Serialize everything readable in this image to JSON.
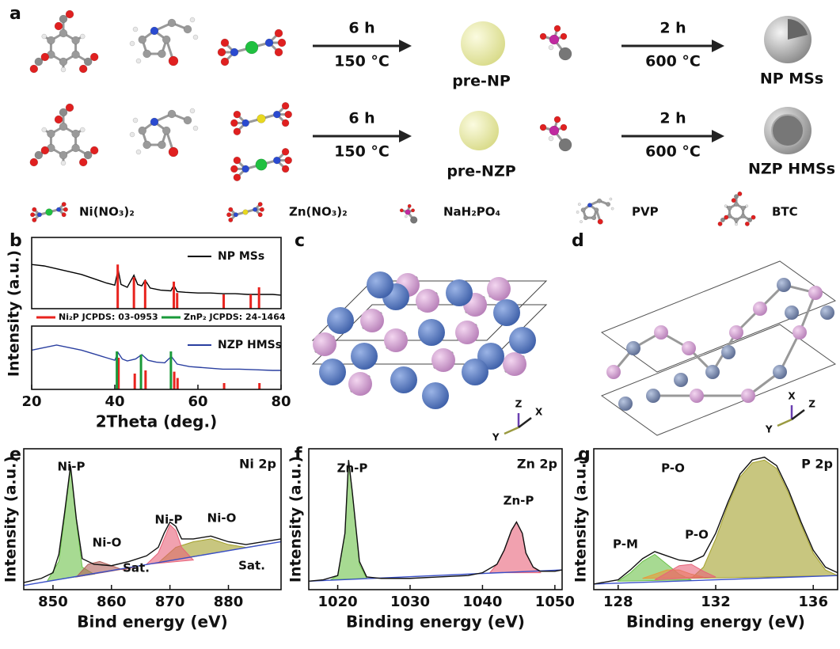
{
  "scheme": {
    "panel": "a",
    "rows": [
      {
        "step1": {
          "time": "6 h",
          "temp": "150 °C"
        },
        "intermediate": "pre-NP",
        "step2": {
          "time": "2 h",
          "temp": "600 °C"
        },
        "product": "NP MSs"
      },
      {
        "step1": {
          "time": "6 h",
          "temp": "150 °C"
        },
        "intermediate": "pre-NZP",
        "step2": {
          "time": "2 h",
          "temp": "600 °C"
        },
        "product": "NZP HMSs"
      }
    ],
    "legend": [
      "Ni(NO₃)₂",
      "Zn(NO₃)₂",
      "NaH₂PO₄",
      "PVP",
      "BTC"
    ]
  },
  "structures": [
    {
      "panel": "c",
      "axes": [
        "Z",
        "Y",
        "X"
      ]
    },
    {
      "panel": "d",
      "axes": [
        "X",
        "Y",
        "Z"
      ]
    }
  ],
  "chart_data": [
    {
      "type": "line",
      "panel": "b",
      "xlim": [
        20,
        80
      ],
      "ylim": [
        0,
        100
      ],
      "series": [
        {
          "name": "NP  MSs",
          "color": "#000000",
          "kind": "line",
          "x": [
            20,
            23,
            26,
            29,
            32,
            35,
            38,
            40,
            40.8,
            41.5,
            43,
            44.6,
            45.5,
            46.5,
            47.3,
            48.5,
            51,
            53.5,
            54.2,
            55,
            57,
            60,
            63,
            66,
            69,
            72,
            75,
            78,
            80
          ],
          "values": [
            62,
            60,
            56,
            52,
            48,
            42,
            36,
            33,
            55,
            34,
            30,
            47,
            34,
            32,
            40,
            29,
            26,
            25,
            33,
            24,
            23,
            22,
            22,
            21,
            21,
            20,
            20,
            20,
            19
          ]
        },
        {
          "color": "#e8231e",
          "kind": "stick",
          "x": [
            40.7,
            44.6,
            47.3,
            54.2,
            55.0,
            66.2,
            72.7,
            74.7
          ],
          "values": [
            62,
            44,
            40,
            38,
            22,
            20,
            20,
            30
          ]
        }
      ]
    },
    {
      "type": "line",
      "xlim": [
        20,
        80
      ],
      "xticks": [
        20,
        40,
        60,
        80
      ],
      "ylim": [
        0,
        100
      ],
      "xlabel": "2Theta (deg.)",
      "ylabel": "Intensity (a.u.)",
      "series": [
        {
          "name": "NZP  HMSs",
          "color": "#2a3fa0",
          "kind": "line",
          "x": [
            20,
            23,
            26,
            29,
            32,
            35,
            38,
            40,
            40.8,
            41.8,
            43,
            45,
            46.5,
            48,
            50,
            52,
            53.6,
            55,
            58,
            62,
            66,
            70,
            74,
            78,
            80
          ],
          "values": [
            62,
            66,
            70,
            66,
            62,
            56,
            50,
            46,
            58,
            48,
            45,
            48,
            55,
            46,
            43,
            42,
            52,
            40,
            36,
            34,
            32,
            32,
            31,
            30,
            30
          ]
        },
        {
          "name": "Ni₂P  JCPDS: 03-0953",
          "color": "#e8231e",
          "kind": "stick",
          "x": [
            40.9,
            44.8,
            47.4,
            54.3,
            55.1,
            66.3,
            74.8
          ],
          "values": [
            50,
            25,
            30,
            28,
            18,
            10,
            10
          ]
        },
        {
          "name": "ZnP₂  JCPDS: 24-1464",
          "color": "#1a9a3a",
          "kind": "stick",
          "x": [
            40.5,
            46.3,
            53.5
          ],
          "values": [
            60,
            55,
            60
          ]
        }
      ]
    },
    {
      "type": "line",
      "panel": "e",
      "title": "Ni 2p",
      "xlim": [
        845,
        889
      ],
      "xticks": [
        850,
        860,
        870,
        880
      ],
      "ylim": [
        0,
        100
      ],
      "xlabel": "Bind energy (eV)",
      "ylabel": "Intensity (a.u.)",
      "annotations": [
        "Ni-P",
        "Ni-O",
        "Sat.",
        "Ni-P",
        "Ni-O",
        "Sat."
      ],
      "series": [
        {
          "color": "#6cc24a",
          "kind": "area",
          "x": [
            849,
            851,
            852,
            853,
            854,
            855,
            857
          ],
          "values": [
            6,
            20,
            52,
            86,
            48,
            16,
            11
          ]
        },
        {
          "color": "#b0605a",
          "kind": "area",
          "x": [
            854,
            856,
            858,
            860,
            862,
            864
          ],
          "values": [
            9,
            18,
            20,
            17,
            14,
            16
          ]
        },
        {
          "color": "#a3a02a",
          "kind": "area",
          "x": [
            868,
            871,
            874,
            877,
            880,
            883,
            886
          ],
          "values": [
            19,
            30,
            34,
            36,
            32,
            30,
            32
          ]
        },
        {
          "color": "#e8637a",
          "kind": "area",
          "x": [
            866,
            868,
            869,
            870,
            871,
            872,
            874
          ],
          "values": [
            18,
            26,
            36,
            46,
            42,
            30,
            21
          ]
        },
        {
          "color": "#3a50c8",
          "kind": "line",
          "x": [
            845,
            889
          ],
          "values": [
            3,
            34
          ]
        },
        {
          "color": "#111111",
          "kind": "line",
          "x": [
            845,
            848,
            850,
            851,
            852,
            853,
            854,
            855,
            857,
            860,
            863,
            866,
            868,
            869,
            870,
            871,
            872,
            874,
            877,
            880,
            883,
            886,
            889
          ],
          "values": [
            5,
            8,
            12,
            25,
            55,
            88,
            50,
            22,
            18,
            17,
            20,
            24,
            30,
            40,
            48,
            45,
            36,
            36,
            38,
            34,
            32,
            34,
            36
          ]
        }
      ]
    },
    {
      "type": "line",
      "panel": "f",
      "title": "Zn 2p",
      "xlim": [
        1016,
        1051
      ],
      "xticks": [
        1020,
        1030,
        1040,
        1050
      ],
      "ylim": [
        0,
        100
      ],
      "xlabel": "Binding energy (eV)",
      "ylabel": "Intensity (a.u.)",
      "annotations": [
        "Zn-P",
        "Zn-P"
      ],
      "series": [
        {
          "color": "#6cc24a",
          "kind": "area",
          "x": [
            1019,
            1020,
            1021,
            1021.5,
            1022,
            1023,
            1024
          ],
          "values": [
            7,
            10,
            40,
            92,
            70,
            18,
            8
          ]
        },
        {
          "color": "#e8637a",
          "kind": "area",
          "x": [
            1041,
            1042,
            1043,
            1044,
            1044.7,
            1045.5,
            1046,
            1047,
            1048
          ],
          "values": [
            12,
            18,
            28,
            42,
            48,
            40,
            26,
            16,
            12
          ]
        },
        {
          "color": "#3a50c8",
          "kind": "line",
          "x": [
            1016,
            1051
          ],
          "values": [
            6,
            14
          ]
        },
        {
          "color": "#111111",
          "kind": "line",
          "x": [
            1016,
            1018,
            1020,
            1021,
            1021.5,
            1022,
            1023,
            1024,
            1026,
            1030,
            1034,
            1038,
            1040,
            1042,
            1043,
            1044,
            1044.7,
            1045.5,
            1046,
            1047,
            1048,
            1050,
            1051
          ],
          "values": [
            6,
            7,
            10,
            40,
            92,
            70,
            20,
            9,
            8,
            8,
            9,
            10,
            12,
            18,
            28,
            42,
            48,
            40,
            26,
            16,
            13,
            13,
            14
          ]
        }
      ]
    },
    {
      "type": "line",
      "panel": "g",
      "title": "P 2p",
      "xlim": [
        127,
        137
      ],
      "xticks": [
        128,
        132,
        136
      ],
      "ylim": [
        0,
        100
      ],
      "xlabel": "Binding energy (eV)",
      "ylabel": "Intensity (a.u.)",
      "annotations": [
        "P-M",
        "P-O",
        "P-O"
      ],
      "series": [
        {
          "color": "#a3a02a",
          "kind": "area",
          "x": [
            131,
            131.5,
            132,
            132.5,
            133,
            133.5,
            134,
            134.5,
            135,
            135.5,
            136,
            136.5,
            137
          ],
          "values": [
            8,
            16,
            36,
            60,
            80,
            90,
            92,
            86,
            68,
            46,
            26,
            14,
            10
          ]
        },
        {
          "color": "#6cc24a",
          "kind": "area",
          "x": [
            128,
            128.5,
            129,
            129.5,
            130,
            130.5,
            131
          ],
          "values": [
            6,
            12,
            20,
            25,
            18,
            11,
            7
          ]
        },
        {
          "color": "#e89a3a",
          "kind": "area",
          "x": [
            129,
            129.5,
            130,
            130.5,
            131,
            131.5
          ],
          "values": [
            8,
            11,
            14,
            14,
            11,
            9
          ]
        },
        {
          "color": "#e8637a",
          "kind": "area",
          "x": [
            129.5,
            130,
            130.5,
            131,
            131.5,
            132
          ],
          "values": [
            7,
            12,
            17,
            18,
            13,
            9
          ]
        },
        {
          "color": "#3a50c8",
          "kind": "line",
          "x": [
            127,
            137
          ],
          "values": [
            4,
            10
          ]
        },
        {
          "color": "#111111",
          "kind": "line",
          "x": [
            127,
            128,
            128.5,
            129,
            129.5,
            130,
            130.5,
            131,
            131.5,
            132,
            132.5,
            133,
            133.5,
            134,
            134.5,
            135,
            135.5,
            136,
            136.5,
            137
          ],
          "values": [
            4,
            7,
            14,
            22,
            27,
            24,
            21,
            20,
            24,
            40,
            62,
            82,
            92,
            94,
            88,
            70,
            48,
            28,
            16,
            12
          ]
        }
      ]
    }
  ]
}
